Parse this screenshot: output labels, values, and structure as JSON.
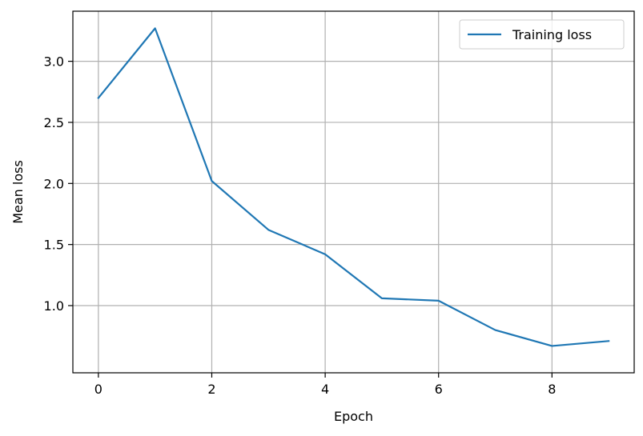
{
  "chart_data": {
    "type": "line",
    "title": "",
    "xlabel": "Epoch",
    "ylabel": "Mean loss",
    "x": [
      0,
      1,
      2,
      3,
      4,
      5,
      6,
      7,
      8,
      9
    ],
    "series": [
      {
        "name": "Training loss",
        "color": "#1f77b4",
        "values": [
          2.7,
          3.27,
          2.02,
          1.62,
          1.42,
          1.06,
          1.04,
          0.8,
          0.67,
          0.71
        ]
      }
    ],
    "xlim": [
      -0.45,
      9.45
    ],
    "ylim": [
      0.45,
      3.41
    ],
    "x_ticks": [
      0,
      2,
      4,
      6,
      8
    ],
    "x_tick_labels": [
      "0",
      "2",
      "4",
      "6",
      "8"
    ],
    "y_ticks": [
      1.0,
      1.5,
      2.0,
      2.5,
      3.0
    ],
    "y_tick_labels": [
      "1.0",
      "1.5",
      "2.0",
      "2.5",
      "3.0"
    ],
    "grid": true,
    "legend_position": "top-right"
  }
}
